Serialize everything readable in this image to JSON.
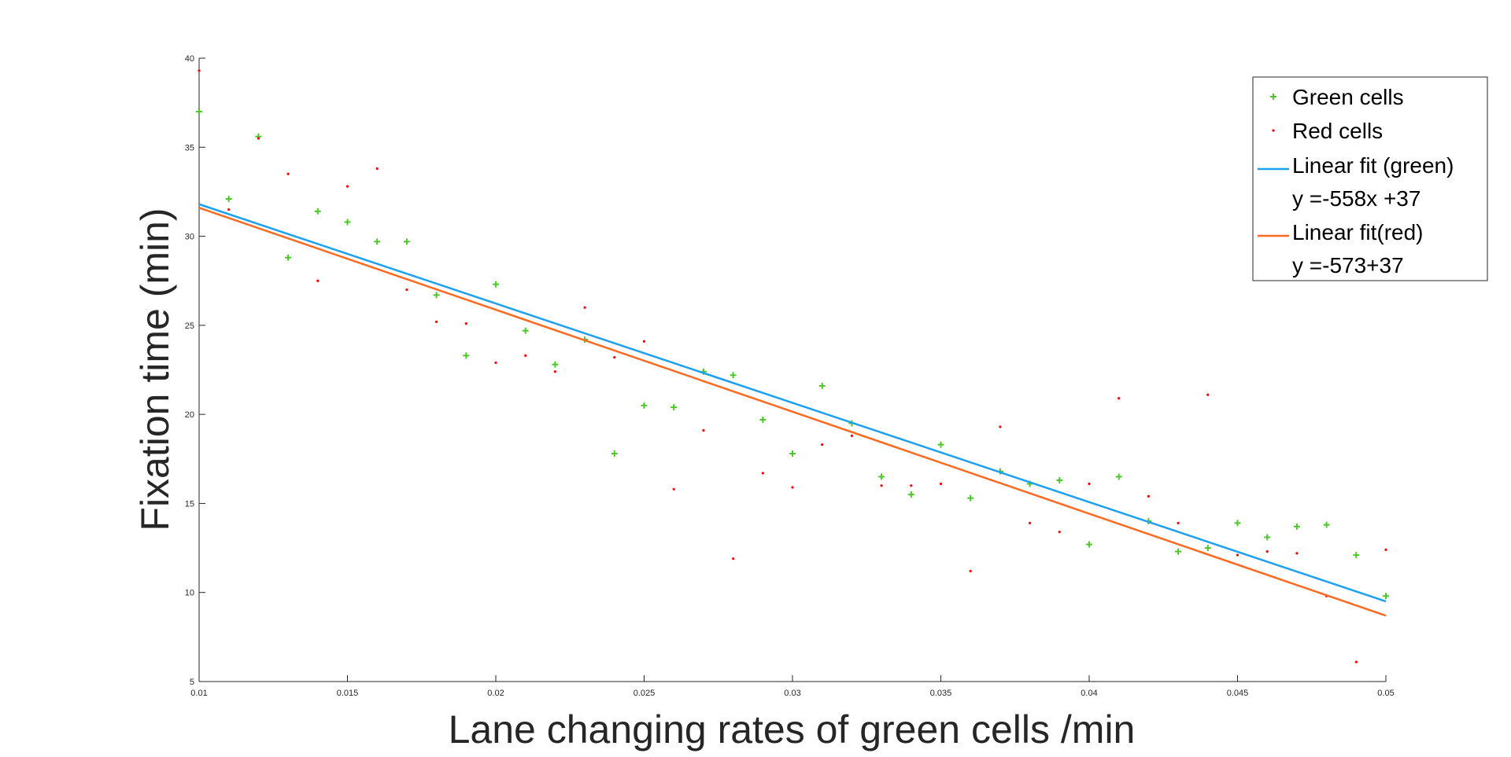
{
  "chart_data": {
    "type": "scatter",
    "title": "",
    "xlabel": "Lane changing rates of green cells /min",
    "ylabel": "Fixation time (min)",
    "xlim": [
      0.01,
      0.05
    ],
    "ylim": [
      5,
      40
    ],
    "xticks": [
      "0.01",
      "0.015",
      "0.02",
      "0.025",
      "0.03",
      "0.035",
      "0.04",
      "0.045",
      "0.05"
    ],
    "xtick_values": [
      0.01,
      0.015,
      0.02,
      0.025,
      0.03,
      0.035,
      0.04,
      0.045,
      0.05
    ],
    "yticks": [
      "5",
      "10",
      "15",
      "20",
      "25",
      "30",
      "35",
      "40"
    ],
    "ytick_values": [
      5,
      10,
      15,
      20,
      25,
      30,
      35,
      40
    ],
    "grid": false,
    "legend_position": "top-right",
    "series": [
      {
        "name": "Green cells",
        "kind": "scatter",
        "marker": "plus",
        "color": "#4dc72a",
        "x": [
          0.01,
          0.011,
          0.012,
          0.013,
          0.014,
          0.015,
          0.016,
          0.017,
          0.018,
          0.019,
          0.02,
          0.021,
          0.022,
          0.023,
          0.024,
          0.025,
          0.026,
          0.027,
          0.028,
          0.029,
          0.03,
          0.031,
          0.032,
          0.033,
          0.034,
          0.035,
          0.036,
          0.037,
          0.038,
          0.039,
          0.04,
          0.041,
          0.042,
          0.043,
          0.044,
          0.045,
          0.046,
          0.047,
          0.048,
          0.049,
          0.05
        ],
        "y": [
          37.0,
          32.1,
          35.6,
          28.8,
          31.4,
          30.8,
          29.7,
          29.7,
          26.7,
          23.3,
          27.3,
          24.7,
          22.8,
          24.2,
          17.8,
          20.5,
          20.4,
          22.4,
          22.2,
          19.7,
          17.8,
          21.6,
          19.5,
          16.5,
          15.5,
          18.3,
          15.3,
          16.8,
          16.1,
          16.3,
          12.7,
          16.5,
          14.0,
          12.3,
          12.5,
          13.9,
          13.1,
          13.7,
          13.8,
          12.1,
          9.8
        ]
      },
      {
        "name": "Red cells",
        "kind": "scatter",
        "marker": "dot",
        "color": "#ff0000",
        "x": [
          0.01,
          0.011,
          0.012,
          0.013,
          0.014,
          0.015,
          0.016,
          0.017,
          0.018,
          0.019,
          0.02,
          0.021,
          0.022,
          0.023,
          0.024,
          0.025,
          0.026,
          0.027,
          0.028,
          0.029,
          0.03,
          0.031,
          0.032,
          0.033,
          0.034,
          0.035,
          0.036,
          0.037,
          0.038,
          0.039,
          0.04,
          0.041,
          0.042,
          0.043,
          0.044,
          0.045,
          0.046,
          0.047,
          0.048,
          0.049,
          0.05
        ],
        "y": [
          39.3,
          31.5,
          35.5,
          33.5,
          27.5,
          32.8,
          33.8,
          27.0,
          25.2,
          25.1,
          22.9,
          23.3,
          22.4,
          26.0,
          23.2,
          24.1,
          15.8,
          19.1,
          11.9,
          16.7,
          15.9,
          18.3,
          18.8,
          16.0,
          16.0,
          16.1,
          11.2,
          19.3,
          13.9,
          13.4,
          16.1,
          20.9,
          15.4,
          13.9,
          21.1,
          12.1,
          12.3,
          12.2,
          9.8,
          6.1,
          12.4
        ]
      },
      {
        "name": "Linear fit (green)",
        "kind": "line",
        "color": "#1ea0f0",
        "x": [
          0.01,
          0.05
        ],
        "y": [
          31.8,
          9.5
        ]
      },
      {
        "name": "Linear fit(red)",
        "kind": "line",
        "color": "#ff6a21",
        "x": [
          0.01,
          0.05
        ],
        "y": [
          31.6,
          8.7
        ]
      }
    ],
    "legend": [
      {
        "label": "Green cells",
        "symbol": "plus",
        "color": "#4dc72a"
      },
      {
        "label": "Red cells",
        "symbol": "dot",
        "color": "#ff0000"
      },
      {
        "label": "Linear fit (green)",
        "symbol": "line",
        "color": "#1ea0f0"
      },
      {
        "label": "y =-558x +37",
        "symbol": "none"
      },
      {
        "label": "Linear fit(red)",
        "symbol": "line",
        "color": "#ff6a21"
      },
      {
        "label": "y =-573+37",
        "symbol": "none"
      }
    ]
  }
}
